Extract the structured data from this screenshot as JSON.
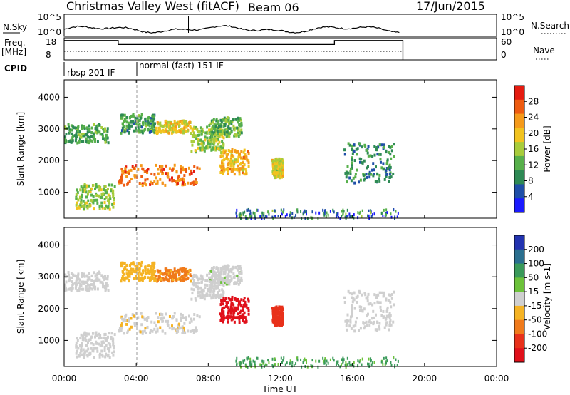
{
  "chart_data": {
    "type": "heatmap",
    "title": "Christmas Valley West (fitACF)",
    "beam": "Beam 06",
    "date": "17/Jun/2015",
    "xlabel": "Time UT",
    "xticks": [
      "00:00",
      "04:00",
      "08:00",
      "12:00",
      "16:00",
      "20:00",
      "00:00"
    ],
    "xlim_hours": [
      0,
      24
    ],
    "top_panels": {
      "nsky": {
        "label": "N.Sky",
        "yticks_left": [
          "10^5",
          "10^0"
        ],
        "right_label": "N.Search",
        "yticks_right": [
          "10^5",
          "10^0"
        ]
      },
      "freq": {
        "label_line1": "Freq.",
        "label_line2": "[MHz]",
        "yticks_left": [
          "18",
          "8"
        ],
        "right_label": "Nave",
        "yticks_right": [
          "60",
          "0"
        ],
        "freq_segments_mhz": [
          {
            "start": 0.0,
            "end": 3.0,
            "value": 17
          },
          {
            "start": 3.0,
            "end": 15.0,
            "value": 15
          },
          {
            "start": 15.0,
            "end": 18.8,
            "value": 17
          }
        ]
      },
      "cpid": {
        "label": "CPID",
        "programs": [
          {
            "name": "rbsp 201 IF",
            "start": 0.0
          },
          {
            "name": "normal (fast) 151 IF",
            "start": 4.0
          }
        ]
      }
    },
    "panels": [
      {
        "name": "power",
        "ylabel": "Slant Range [km]",
        "yticks": [
          "1000",
          "2000",
          "3000",
          "4000"
        ],
        "ylim_km": [
          180,
          4550
        ],
        "colorbar_label": "Power [dB]",
        "colorbar_ticks": [
          "4",
          "8",
          "12",
          "16",
          "20",
          "24",
          "28"
        ],
        "colorbar_range": [
          0,
          30
        ],
        "colorbar_colors": [
          "#1a1aff",
          "#1f4fa8",
          "#2e8a55",
          "#57b04b",
          "#a8cc3b",
          "#f2c31f",
          "#f59a1a",
          "#ee5b10",
          "#e51b10"
        ]
      },
      {
        "name": "velocity",
        "ylabel": "Slant Range [km]",
        "yticks": [
          "1000",
          "2000",
          "3000",
          "4000"
        ],
        "ylim_km": [
          180,
          4550
        ],
        "colorbar_label": "Velocity [m s-1]",
        "colorbar_ticks": [
          "200",
          "100",
          "50",
          "15",
          "-15",
          "-50",
          "-100",
          "-200"
        ],
        "colorbar_range": [
          -250,
          250
        ],
        "colorbar_colors": [
          "#2233b0",
          "#2a6f8f",
          "#3a9a5a",
          "#6cc23a",
          "#cfcfcf",
          "#f5b324",
          "#f07a1b",
          "#e8311a",
          "#e0101a"
        ]
      }
    ],
    "echo_regions": [
      {
        "t0": 0.0,
        "t1": 2.4,
        "r0": 2600,
        "r1": 3200,
        "pow": 11,
        "vel": 0
      },
      {
        "t0": 0.6,
        "t1": 2.8,
        "r0": 500,
        "r1": 1300,
        "pow": 14,
        "vel": 0
      },
      {
        "t0": 3.0,
        "t1": 7.5,
        "r0": 1250,
        "r1": 1900,
        "pow": 24,
        "vel": -5
      },
      {
        "t0": 3.1,
        "t1": 5.0,
        "r0": 2900,
        "r1": 3500,
        "pow": 10,
        "vel": -30
      },
      {
        "t0": 5.0,
        "t1": 7.0,
        "r0": 2900,
        "r1": 3300,
        "pow": 18,
        "vel": -60
      },
      {
        "t0": 7.0,
        "t1": 8.8,
        "r0": 2300,
        "r1": 3100,
        "pow": 14,
        "vel": 0
      },
      {
        "t0": 8.0,
        "t1": 9.8,
        "r0": 2800,
        "r1": 3400,
        "pow": 12,
        "vel": 5
      },
      {
        "t0": 8.6,
        "t1": 10.2,
        "r0": 1600,
        "r1": 2400,
        "pow": 20,
        "vel": -220
      },
      {
        "t0": 11.5,
        "t1": 12.1,
        "r0": 1500,
        "r1": 2100,
        "pow": 17,
        "vel": -160
      },
      {
        "t0": 15.5,
        "t1": 18.3,
        "r0": 1300,
        "r1": 2600,
        "pow": 9,
        "vel": 0
      }
    ]
  }
}
